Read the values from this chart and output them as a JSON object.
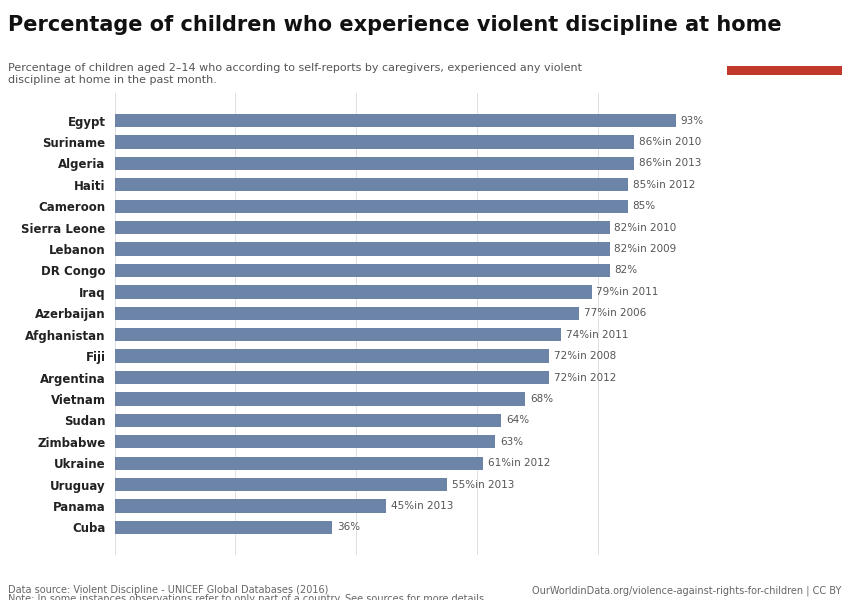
{
  "title": "Percentage of children who experience violent discipline at home",
  "subtitle": "Percentage of children aged 2–14 who according to self-reports by caregivers, experienced any violent\ndiscipline at home in the past month.",
  "countries": [
    "Egypt",
    "Suriname",
    "Algeria",
    "Haiti",
    "Cameroon",
    "Sierra Leone",
    "Lebanon",
    "DR Congo",
    "Iraq",
    "Azerbaijan",
    "Afghanistan",
    "Fiji",
    "Argentina",
    "Vietnam",
    "Sudan",
    "Zimbabwe",
    "Ukraine",
    "Uruguay",
    "Panama",
    "Cuba"
  ],
  "values": [
    93,
    86,
    86,
    85,
    85,
    82,
    82,
    82,
    79,
    77,
    74,
    72,
    72,
    68,
    64,
    63,
    61,
    55,
    45,
    36
  ],
  "years": [
    "",
    "in 2010",
    "in 2013",
    "in 2012",
    "",
    "in 2010",
    "in 2009",
    "",
    "in 2011",
    "in 2006",
    "in 2011",
    "in 2008",
    "in 2012",
    "",
    "",
    "",
    "in 2012",
    "in 2013",
    "in 2013",
    ""
  ],
  "bar_color": "#6b84a8",
  "background_color": "#ffffff",
  "datasource": "Data source: Violent Discipline - UNICEF Global Databases (2016)",
  "url": "OurWorldinData.org/violence-against-rights-for-children | CC BY",
  "note": "Note: In some instances observations refer to only part of a country. See sources for more details.",
  "logo_bg": "#1a3a5c",
  "logo_red": "#c0392b",
  "xlim": [
    0,
    100
  ],
  "title_fontsize": 15,
  "subtitle_fontsize": 8,
  "label_fontsize": 7.5,
  "ytick_fontsize": 8.5
}
